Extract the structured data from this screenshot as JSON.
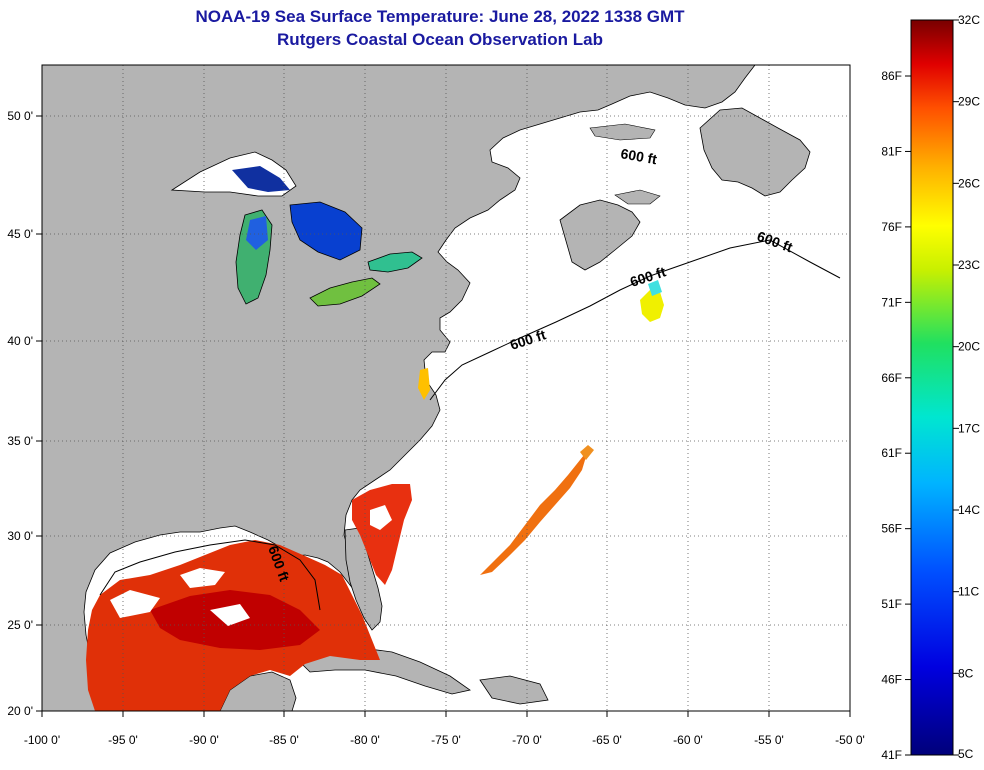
{
  "title": "NOAA-19 Sea Surface Temperature:  June 28, 2022 1338 GMT",
  "subtitle": "Rutgers Coastal Ocean Observation Lab",
  "map": {
    "lon_labels": [
      "-100 0'",
      "-95 0'",
      "-90 0'",
      "-85 0'",
      "-80 0'",
      "-75 0'",
      "-70 0'",
      "-65 0'",
      "-60 0'",
      "-55 0'",
      "-50 0'"
    ],
    "lat_labels": [
      "50 0'",
      "45 0'",
      "40 0'",
      "35 0'",
      "30 0'",
      "25 0'",
      "20 0'"
    ],
    "contour_label": "600 ft",
    "colors": {
      "land": "#b4b4b4",
      "ocean_nodata": "#ffffff",
      "grid": "#555555"
    }
  },
  "colorbar": {
    "celsius_labels": [
      "32C",
      "29C",
      "26C",
      "23C",
      "20C",
      "17C",
      "14C",
      "11C",
      "8C",
      "5C"
    ],
    "fahrenheit_labels": [
      "86F",
      "81F",
      "76F",
      "71F",
      "66F",
      "61F",
      "56F",
      "51F",
      "46F",
      "41F"
    ]
  }
}
